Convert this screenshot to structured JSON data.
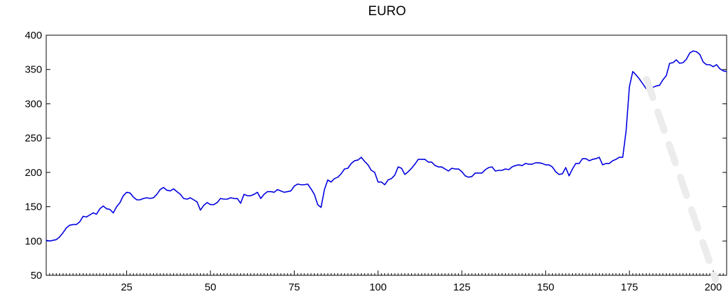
{
  "chart_data": {
    "type": "line",
    "title": "EURO",
    "xlabel": "",
    "ylabel": "",
    "xlim": [
      1,
      204
    ],
    "ylim": [
      50,
      400
    ],
    "grid": false,
    "x_ticks": [
      25,
      50,
      75,
      100,
      125,
      150,
      175,
      200
    ],
    "y_ticks": [
      50,
      100,
      150,
      200,
      250,
      300,
      350,
      400
    ],
    "series": [
      {
        "name": "",
        "color": "#0000e0",
        "x": [
          1,
          2,
          3,
          4,
          5,
          6,
          7,
          8,
          9,
          10,
          11,
          12,
          13,
          14,
          15,
          16,
          17,
          18,
          19,
          20,
          21,
          22,
          23,
          24,
          25,
          26,
          27,
          28,
          29,
          30,
          31,
          32,
          33,
          34,
          35,
          36,
          37,
          38,
          39,
          40,
          41,
          42,
          43,
          44,
          45,
          46,
          47,
          48,
          49,
          50,
          51,
          52,
          53,
          54,
          55,
          56,
          57,
          58,
          59,
          60,
          61,
          62,
          63,
          64,
          65,
          66,
          67,
          68,
          69,
          70,
          71,
          72,
          73,
          74,
          75,
          76,
          77,
          78,
          79,
          80,
          81,
          82,
          83,
          84,
          85,
          86,
          87,
          88,
          89,
          90,
          91,
          92,
          93,
          94,
          95,
          96,
          97,
          98,
          99,
          100,
          101,
          102,
          103,
          104,
          105,
          106,
          107,
          108,
          109,
          110,
          111,
          112,
          113,
          114,
          115,
          116,
          117,
          118,
          119,
          120,
          121,
          122,
          123,
          124,
          125,
          126,
          127,
          128,
          129,
          130,
          131,
          132,
          133,
          134,
          135,
          136,
          137,
          138,
          139,
          140,
          141,
          142,
          143,
          144,
          145,
          146,
          147,
          148,
          149,
          150,
          151,
          152,
          153,
          154,
          155,
          156,
          157,
          158,
          159,
          160,
          161,
          162,
          163,
          164,
          165,
          166,
          167,
          168,
          169,
          170,
          171,
          172,
          173,
          174,
          175,
          176,
          177,
          178,
          179,
          180,
          181,
          182,
          183,
          184,
          185,
          186,
          187,
          188,
          189,
          190,
          191,
          192,
          193,
          194,
          195,
          196,
          197,
          198,
          199,
          200,
          201,
          202,
          203,
          204
        ],
        "values": [
          101,
          100,
          101,
          102,
          106,
          112,
          119,
          123,
          124,
          124,
          128,
          136,
          135,
          138,
          141,
          139,
          147,
          151,
          147,
          146,
          141,
          150,
          156,
          166,
          171,
          170,
          164,
          160,
          160,
          162,
          163,
          162,
          163,
          168,
          175,
          178,
          174,
          173,
          176,
          172,
          168,
          162,
          161,
          163,
          160,
          157,
          145,
          152,
          156,
          153,
          153,
          156,
          162,
          161,
          161,
          163,
          162,
          162,
          155,
          168,
          166,
          166,
          168,
          171,
          162,
          168,
          172,
          172,
          171,
          175,
          173,
          171,
          172,
          173,
          180,
          183,
          182,
          182,
          183,
          176,
          168,
          153,
          149,
          175,
          189,
          186,
          191,
          193,
          198,
          205,
          206,
          213,
          217,
          218,
          222,
          216,
          211,
          203,
          200,
          186,
          186,
          182,
          189,
          191,
          196,
          208,
          206,
          197,
          201,
          206,
          212,
          219,
          219,
          219,
          215,
          215,
          210,
          208,
          208,
          205,
          202,
          206,
          205,
          205,
          201,
          195,
          193,
          194,
          199,
          199,
          199,
          204,
          207,
          208,
          202,
          203,
          203,
          205,
          204,
          208,
          210,
          211,
          210,
          213,
          212,
          212,
          214,
          214,
          213,
          211,
          211,
          208,
          201,
          197,
          198,
          207,
          195,
          205,
          213,
          213,
          220,
          220,
          217,
          219,
          220,
          222,
          211,
          213,
          213,
          217,
          219,
          222,
          222,
          260,
          325,
          347,
          342,
          336,
          329,
          322,
          323,
          324,
          326,
          327,
          335,
          341,
          359,
          360,
          364,
          359,
          360,
          365,
          374,
          377,
          376,
          372,
          361,
          357,
          357,
          354,
          357,
          351,
          348,
          347
        ]
      }
    ]
  }
}
